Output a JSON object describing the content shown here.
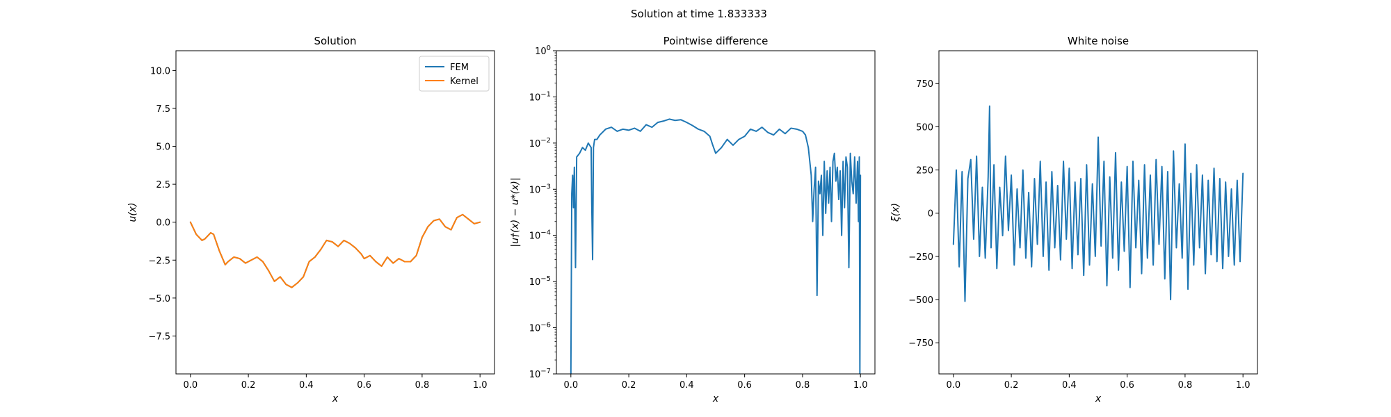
{
  "figure": {
    "suptitle": "Solution at time 1.833333"
  },
  "chart_data": [
    {
      "type": "line",
      "title": "Solution",
      "xlabel": "x",
      "ylabel": "u(x)",
      "xlim": [
        -0.05,
        1.05
      ],
      "ylim": [
        -10,
        11.3
      ],
      "xticks": [
        0.0,
        0.2,
        0.4,
        0.6,
        0.8,
        1.0
      ],
      "xtick_labels": [
        "0.0",
        "0.2",
        "0.4",
        "0.6",
        "0.8",
        "1.0"
      ],
      "yticks": [
        -7.5,
        -5.0,
        -2.5,
        0.0,
        2.5,
        5.0,
        7.5,
        10.0
      ],
      "ytick_labels": [
        "−7.5",
        "−5.0",
        "−2.5",
        "0.0",
        "2.5",
        "5.0",
        "7.5",
        "10.0"
      ],
      "legend": "top-right",
      "grid": false,
      "series": [
        {
          "name": "FEM",
          "color": "#1f77b4",
          "x": [
            0.0,
            0.02,
            0.04,
            0.05,
            0.07,
            0.08,
            0.1,
            0.12,
            0.13,
            0.15,
            0.17,
            0.19,
            0.21,
            0.23,
            0.25,
            0.27,
            0.29,
            0.31,
            0.33,
            0.35,
            0.37,
            0.39,
            0.41,
            0.43,
            0.45,
            0.47,
            0.49,
            0.51,
            0.53,
            0.55,
            0.57,
            0.59,
            0.6,
            0.62,
            0.64,
            0.66,
            0.68,
            0.7,
            0.72,
            0.74,
            0.76,
            0.78,
            0.8,
            0.82,
            0.84,
            0.86,
            0.88,
            0.9,
            0.92,
            0.94,
            0.96,
            0.98,
            1.0
          ],
          "y": [
            0.0,
            -0.8,
            -1.2,
            -1.1,
            -0.7,
            -0.8,
            -1.9,
            -2.8,
            -2.6,
            -2.3,
            -2.4,
            -2.7,
            -2.5,
            -2.3,
            -2.6,
            -3.2,
            -3.9,
            -3.6,
            -4.1,
            -4.3,
            -4.0,
            -3.6,
            -2.6,
            -2.3,
            -1.8,
            -1.2,
            -1.3,
            -1.6,
            -1.2,
            -1.4,
            -1.7,
            -2.1,
            -2.4,
            -2.2,
            -2.6,
            -2.9,
            -2.3,
            -2.7,
            -2.4,
            -2.6,
            -2.6,
            -2.2,
            -1.0,
            -0.3,
            0.1,
            0.2,
            -0.3,
            -0.5,
            0.3,
            0.5,
            0.2,
            -0.1,
            0.0
          ]
        },
        {
          "name": "Kernel",
          "color": "#ff7f0e",
          "x": [
            0.0,
            0.02,
            0.04,
            0.05,
            0.07,
            0.08,
            0.1,
            0.12,
            0.13,
            0.15,
            0.17,
            0.19,
            0.21,
            0.23,
            0.25,
            0.27,
            0.29,
            0.31,
            0.33,
            0.35,
            0.37,
            0.39,
            0.41,
            0.43,
            0.45,
            0.47,
            0.49,
            0.51,
            0.53,
            0.55,
            0.57,
            0.59,
            0.6,
            0.62,
            0.64,
            0.66,
            0.68,
            0.7,
            0.72,
            0.74,
            0.76,
            0.78,
            0.8,
            0.82,
            0.84,
            0.86,
            0.88,
            0.9,
            0.92,
            0.94,
            0.96,
            0.98,
            1.0
          ],
          "y": [
            0.0,
            -0.8,
            -1.2,
            -1.1,
            -0.7,
            -0.8,
            -1.9,
            -2.8,
            -2.6,
            -2.3,
            -2.4,
            -2.7,
            -2.5,
            -2.3,
            -2.6,
            -3.2,
            -3.9,
            -3.6,
            -4.1,
            -4.3,
            -4.0,
            -3.6,
            -2.6,
            -2.3,
            -1.8,
            -1.2,
            -1.3,
            -1.6,
            -1.2,
            -1.4,
            -1.7,
            -2.1,
            -2.4,
            -2.2,
            -2.6,
            -2.9,
            -2.3,
            -2.7,
            -2.4,
            -2.6,
            -2.6,
            -2.2,
            -1.0,
            -0.3,
            0.1,
            0.2,
            -0.3,
            -0.5,
            0.3,
            0.5,
            0.2,
            -0.1,
            0.0
          ]
        }
      ]
    },
    {
      "type": "line",
      "title": "Pointwise difference",
      "xlabel": "x",
      "ylabel": "|u†(x) − u*(x)|",
      "yscale": "log",
      "xlim": [
        -0.05,
        1.05
      ],
      "ylim": [
        1e-07,
        1
      ],
      "xticks": [
        0.0,
        0.2,
        0.4,
        0.6,
        0.8,
        1.0
      ],
      "xtick_labels": [
        "0.0",
        "0.2",
        "0.4",
        "0.6",
        "0.8",
        "1.0"
      ],
      "yticks": [
        1e-07,
        1e-06,
        1e-05,
        0.0001,
        0.001,
        0.01,
        0.1,
        1
      ],
      "ytick_base": "10",
      "ytick_exponents": [
        "−7",
        "−6",
        "−5",
        "−4",
        "−3",
        "−2",
        "−1",
        "0"
      ],
      "grid": false,
      "series": [
        {
          "color": "#1f77b4",
          "x": [
            0.0,
            0.003,
            0.006,
            0.009,
            0.012,
            0.016,
            0.02,
            0.03,
            0.04,
            0.05,
            0.06,
            0.07,
            0.072,
            0.075,
            0.078,
            0.082,
            0.09,
            0.1,
            0.12,
            0.14,
            0.16,
            0.18,
            0.2,
            0.22,
            0.24,
            0.26,
            0.28,
            0.3,
            0.32,
            0.34,
            0.36,
            0.38,
            0.4,
            0.42,
            0.44,
            0.46,
            0.48,
            0.49,
            0.5,
            0.52,
            0.54,
            0.56,
            0.58,
            0.6,
            0.62,
            0.64,
            0.66,
            0.68,
            0.7,
            0.72,
            0.74,
            0.76,
            0.78,
            0.8,
            0.81,
            0.82,
            0.83,
            0.835,
            0.84,
            0.845,
            0.85,
            0.855,
            0.86,
            0.865,
            0.87,
            0.875,
            0.88,
            0.885,
            0.89,
            0.895,
            0.9,
            0.905,
            0.91,
            0.915,
            0.92,
            0.925,
            0.93,
            0.935,
            0.94,
            0.945,
            0.95,
            0.955,
            0.96,
            0.965,
            0.97,
            0.975,
            0.98,
            0.985,
            0.99,
            0.993,
            0.996,
            0.998,
            1.0
          ],
          "y": [
            1e-07,
            0.0008,
            0.002,
            0.0004,
            0.003,
            2e-05,
            0.005,
            0.006,
            0.008,
            0.007,
            0.01,
            0.008,
            0.0005,
            3e-05,
            0.008,
            0.012,
            0.012,
            0.015,
            0.02,
            0.022,
            0.018,
            0.02,
            0.019,
            0.021,
            0.018,
            0.025,
            0.022,
            0.028,
            0.03,
            0.033,
            0.031,
            0.032,
            0.028,
            0.024,
            0.02,
            0.018,
            0.014,
            0.009,
            0.006,
            0.008,
            0.012,
            0.009,
            0.012,
            0.014,
            0.02,
            0.018,
            0.022,
            0.017,
            0.015,
            0.02,
            0.016,
            0.021,
            0.02,
            0.018,
            0.015,
            0.008,
            0.002,
            0.0002,
            0.001,
            0.003,
            5e-06,
            0.0015,
            0.0008,
            0.002,
            0.0001,
            0.004,
            0.0003,
            0.0025,
            0.0005,
            0.003,
            0.0002,
            0.004,
            0.006,
            0.0015,
            0.003,
            0.0006,
            0.0025,
            0.0001,
            0.004,
            0.0004,
            0.005,
            0.003,
            2e-05,
            0.006,
            0.0015,
            0.0008,
            0.005,
            0.0005,
            0.004,
            0.0002,
            0.005,
            1e-07,
            0.002
          ]
        }
      ]
    },
    {
      "type": "line",
      "title": "White noise",
      "xlabel": "x",
      "ylabel": "ξ(x)",
      "xlim": [
        -0.05,
        1.05
      ],
      "ylim": [
        -930,
        940
      ],
      "xticks": [
        0.0,
        0.2,
        0.4,
        0.6,
        0.8,
        1.0
      ],
      "xtick_labels": [
        "0.0",
        "0.2",
        "0.4",
        "0.6",
        "0.8",
        "1.0"
      ],
      "yticks": [
        -750,
        -500,
        -250,
        0,
        250,
        500,
        750
      ],
      "ytick_labels": [
        "−750",
        "−500",
        "−250",
        "0",
        "250",
        "500",
        "750"
      ],
      "grid": false,
      "series": [
        {
          "color": "#1f77b4",
          "x": [
            0.0,
            0.01,
            0.02,
            0.03,
            0.04,
            0.05,
            0.06,
            0.07,
            0.08,
            0.09,
            0.1,
            0.11,
            0.12,
            0.125,
            0.13,
            0.14,
            0.15,
            0.16,
            0.17,
            0.18,
            0.19,
            0.2,
            0.21,
            0.22,
            0.23,
            0.24,
            0.25,
            0.26,
            0.27,
            0.28,
            0.29,
            0.3,
            0.31,
            0.32,
            0.33,
            0.34,
            0.35,
            0.36,
            0.37,
            0.38,
            0.39,
            0.4,
            0.41,
            0.42,
            0.43,
            0.44,
            0.45,
            0.46,
            0.47,
            0.48,
            0.49,
            0.5,
            0.51,
            0.52,
            0.53,
            0.54,
            0.55,
            0.56,
            0.57,
            0.58,
            0.59,
            0.6,
            0.61,
            0.62,
            0.63,
            0.64,
            0.65,
            0.66,
            0.67,
            0.68,
            0.69,
            0.7,
            0.71,
            0.72,
            0.73,
            0.74,
            0.75,
            0.76,
            0.77,
            0.78,
            0.79,
            0.8,
            0.81,
            0.82,
            0.83,
            0.84,
            0.85,
            0.86,
            0.87,
            0.88,
            0.89,
            0.9,
            0.91,
            0.92,
            0.93,
            0.94,
            0.95,
            0.96,
            0.97,
            0.98,
            0.99,
            1.0
          ],
          "y": [
            -180,
            250,
            -310,
            240,
            -510,
            200,
            310,
            -150,
            330,
            -250,
            150,
            -260,
            210,
            620,
            -200,
            280,
            -320,
            150,
            -130,
            330,
            -100,
            220,
            -300,
            140,
            -200,
            250,
            -260,
            120,
            -310,
            200,
            -180,
            300,
            -250,
            180,
            -330,
            240,
            -200,
            160,
            -270,
            300,
            -150,
            260,
            -320,
            180,
            -240,
            200,
            -360,
            280,
            -300,
            170,
            -250,
            440,
            -190,
            300,
            -420,
            210,
            -260,
            350,
            -330,
            180,
            -220,
            270,
            -430,
            300,
            -200,
            190,
            -350,
            280,
            -260,
            220,
            -300,
            310,
            -180,
            270,
            -380,
            240,
            -500,
            360,
            -200,
            170,
            -260,
            400,
            -440,
            230,
            -300,
            280,
            -200,
            220,
            -350,
            190,
            -240,
            260,
            -280,
            200,
            -320,
            180,
            -250,
            140,
            -300,
            190,
            -280,
            230
          ]
        }
      ]
    }
  ]
}
